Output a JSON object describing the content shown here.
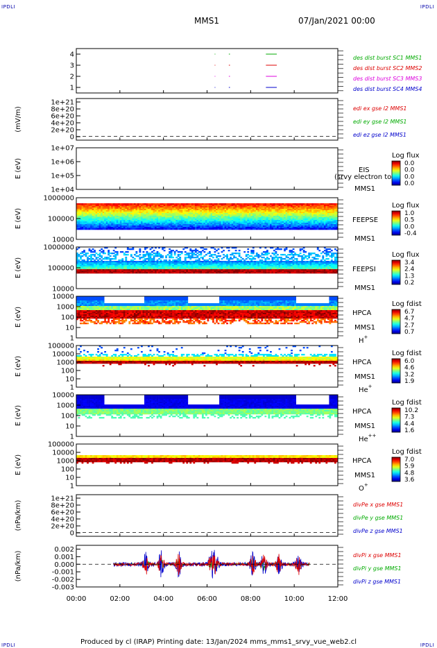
{
  "header": {
    "corner_label": "IPDLI",
    "title": "MMS1",
    "date": "07/Jan/2021 00:00"
  },
  "footer": {
    "text": "Produced by cl (IRAP)   Printing date: 13/Jan/2024   mms_mms1_srvy_vue_web2.cl"
  },
  "chart_data": [
    {
      "type": "line",
      "name": "burst",
      "ylim": [
        0.5,
        4.5
      ],
      "y_ticks": [
        "4",
        "3",
        "2",
        "1"
      ],
      "legend": [
        {
          "label": "des dist burst SC1 MMS1",
          "color": "#00aa00"
        },
        {
          "label": "des dist burst SC2 MMS2",
          "color": "#dd0000"
        },
        {
          "label": "des dist burst SC3 MMS3",
          "color": "#dd00dd"
        },
        {
          "label": "des dist burst SC4 MMS4",
          "color": "#0000cc"
        }
      ],
      "segments": [
        {
          "level": 4,
          "color": "#00aa00",
          "x": [
            [
              6.35,
              6.38
            ],
            [
              7.0,
              7.05
            ],
            [
              8.7,
              9.2
            ]
          ]
        },
        {
          "level": 3,
          "color": "#dd0000",
          "x": [
            [
              6.35,
              6.38
            ],
            [
              7.0,
              7.05
            ],
            [
              8.7,
              9.2
            ]
          ]
        },
        {
          "level": 2,
          "color": "#dd00dd",
          "x": [
            [
              6.35,
              6.38
            ],
            [
              7.0,
              7.05
            ],
            [
              8.7,
              9.2
            ]
          ]
        },
        {
          "level": 1,
          "color": "#0000cc",
          "x": [
            [
              6.35,
              6.38
            ],
            [
              7.0,
              7.05
            ],
            [
              8.7,
              9.2
            ]
          ]
        }
      ]
    },
    {
      "type": "line",
      "name": "edi",
      "ylabel": "(mV/m)",
      "y_ticks": [
        "1e+21",
        "8e+20",
        "6e+20",
        "4e+20",
        "2e+20",
        "0"
      ],
      "zero_line": true,
      "legend": [
        {
          "label": "edi ex gse l2 MMS1",
          "color": "#dd0000"
        },
        {
          "label": "edi ey gse l2 MMS1",
          "color": "#00aa00"
        },
        {
          "label": "edi ez gse l2 MMS1",
          "color": "#0000cc"
        }
      ]
    },
    {
      "type": "heatmap",
      "name": "eis",
      "ylabel": "E (eV)",
      "y_ticks": [
        "1e+07",
        "1e+06",
        "1e+05",
        "1e+04"
      ],
      "instrument": "EIS",
      "spacecraft": "MMS1",
      "overlay_text": "(srvy electron to",
      "colorbar": {
        "title": "Log flux",
        "ticks": [
          "0.0",
          "0.0",
          "0.0",
          "0.0"
        ]
      }
    },
    {
      "type": "heatmap",
      "name": "feepse",
      "ylabel": "E (eV)",
      "y_ticks": [
        "1000000",
        "100000",
        "10000"
      ],
      "instrument": "FEEPSE",
      "spacecraft": "MMS1",
      "colorbar": {
        "title": "Log flux",
        "ticks": [
          "1.0",
          "0.5",
          "0.0",
          "-0.4"
        ]
      }
    },
    {
      "type": "heatmap",
      "name": "feepsi",
      "ylabel": "E (eV)",
      "y_ticks": [
        "1000000",
        "100000",
        "10000"
      ],
      "instrument": "FEEPSI",
      "spacecraft": "MMS1",
      "colorbar": {
        "title": "Log flux",
        "ticks": [
          "3.4",
          "2.4",
          "1.3",
          "0.2"
        ]
      }
    },
    {
      "type": "heatmap",
      "name": "hpca-h",
      "ylabel": "E (eV)",
      "y_ticks": [
        "10000",
        "1000",
        "100",
        "10",
        "1"
      ],
      "instrument": "HPCA",
      "spacecraft": "MMS1",
      "species": "H",
      "species_sup": "+",
      "colorbar": {
        "title": "Log fdist",
        "ticks": [
          "6.7",
          "4.7",
          "2.7",
          "0.7"
        ]
      }
    },
    {
      "type": "heatmap",
      "name": "hpca-he",
      "ylabel": "E (eV)",
      "y_ticks": [
        "100000",
        "10000",
        "1000",
        "100",
        "10",
        "1"
      ],
      "instrument": "HPCA",
      "spacecraft": "MMS1",
      "species": "He",
      "species_sup": "+",
      "colorbar": {
        "title": "Log fdist",
        "ticks": [
          "6.0",
          "4.6",
          "3.2",
          "1.9"
        ]
      }
    },
    {
      "type": "heatmap",
      "name": "hpca-hepp",
      "ylabel": "E (eV)",
      "y_ticks": [
        "10000",
        "1000",
        "100",
        "10",
        "1"
      ],
      "instrument": "HPCA",
      "spacecraft": "MMS1",
      "species": "He",
      "species_sup": "++",
      "colorbar": {
        "title": "Log fdist",
        "ticks": [
          "10.2",
          "7.3",
          "4.4",
          "1.6"
        ]
      }
    },
    {
      "type": "heatmap",
      "name": "hpca-o",
      "ylabel": "E (eV)",
      "y_ticks": [
        "100000",
        "10000",
        "1000",
        "100",
        "10",
        "1"
      ],
      "instrument": "HPCA",
      "spacecraft": "MMS1",
      "species": "O",
      "species_sup": "+",
      "colorbar": {
        "title": "Log fdist",
        "ticks": [
          "7.0",
          "5.9",
          "4.8",
          "3.6"
        ]
      }
    },
    {
      "type": "line",
      "name": "divpe",
      "ylabel": "(nPa/km)",
      "y_ticks": [
        "1e+21",
        "8e+20",
        "6e+20",
        "4e+20",
        "2e+20",
        "0"
      ],
      "zero_line": true,
      "legend": [
        {
          "label": "divPe x gse MMS1",
          "color": "#dd0000"
        },
        {
          "label": "divPe y gse MMS1",
          "color": "#00aa00"
        },
        {
          "label": "divPe z gse MMS1",
          "color": "#0000cc"
        }
      ]
    },
    {
      "type": "line",
      "name": "divpi",
      "ylabel": "(nPa/km)",
      "ylim": [
        -0.003,
        0.0025
      ],
      "y_ticks": [
        "0.002",
        "0.001",
        "0.000",
        "-0.001",
        "-0.002",
        "-0.003"
      ],
      "zero_line": true,
      "x_range": [
        1.7,
        10.7
      ],
      "legend": [
        {
          "label": "divPi x gse MMS1",
          "color": "#dd0000"
        },
        {
          "label": "divPi y gse MMS1",
          "color": "#00aa00"
        },
        {
          "label": "divPi z gse MMS1",
          "color": "#0000cc"
        }
      ]
    }
  ],
  "x_axis": {
    "xlim": [
      0,
      12
    ],
    "ticks": [
      "00:00",
      "02:00",
      "04:00",
      "06:00",
      "08:00",
      "10:00",
      "12:00"
    ],
    "tick_hours": [
      0,
      2,
      4,
      6,
      8,
      10,
      12
    ]
  }
}
